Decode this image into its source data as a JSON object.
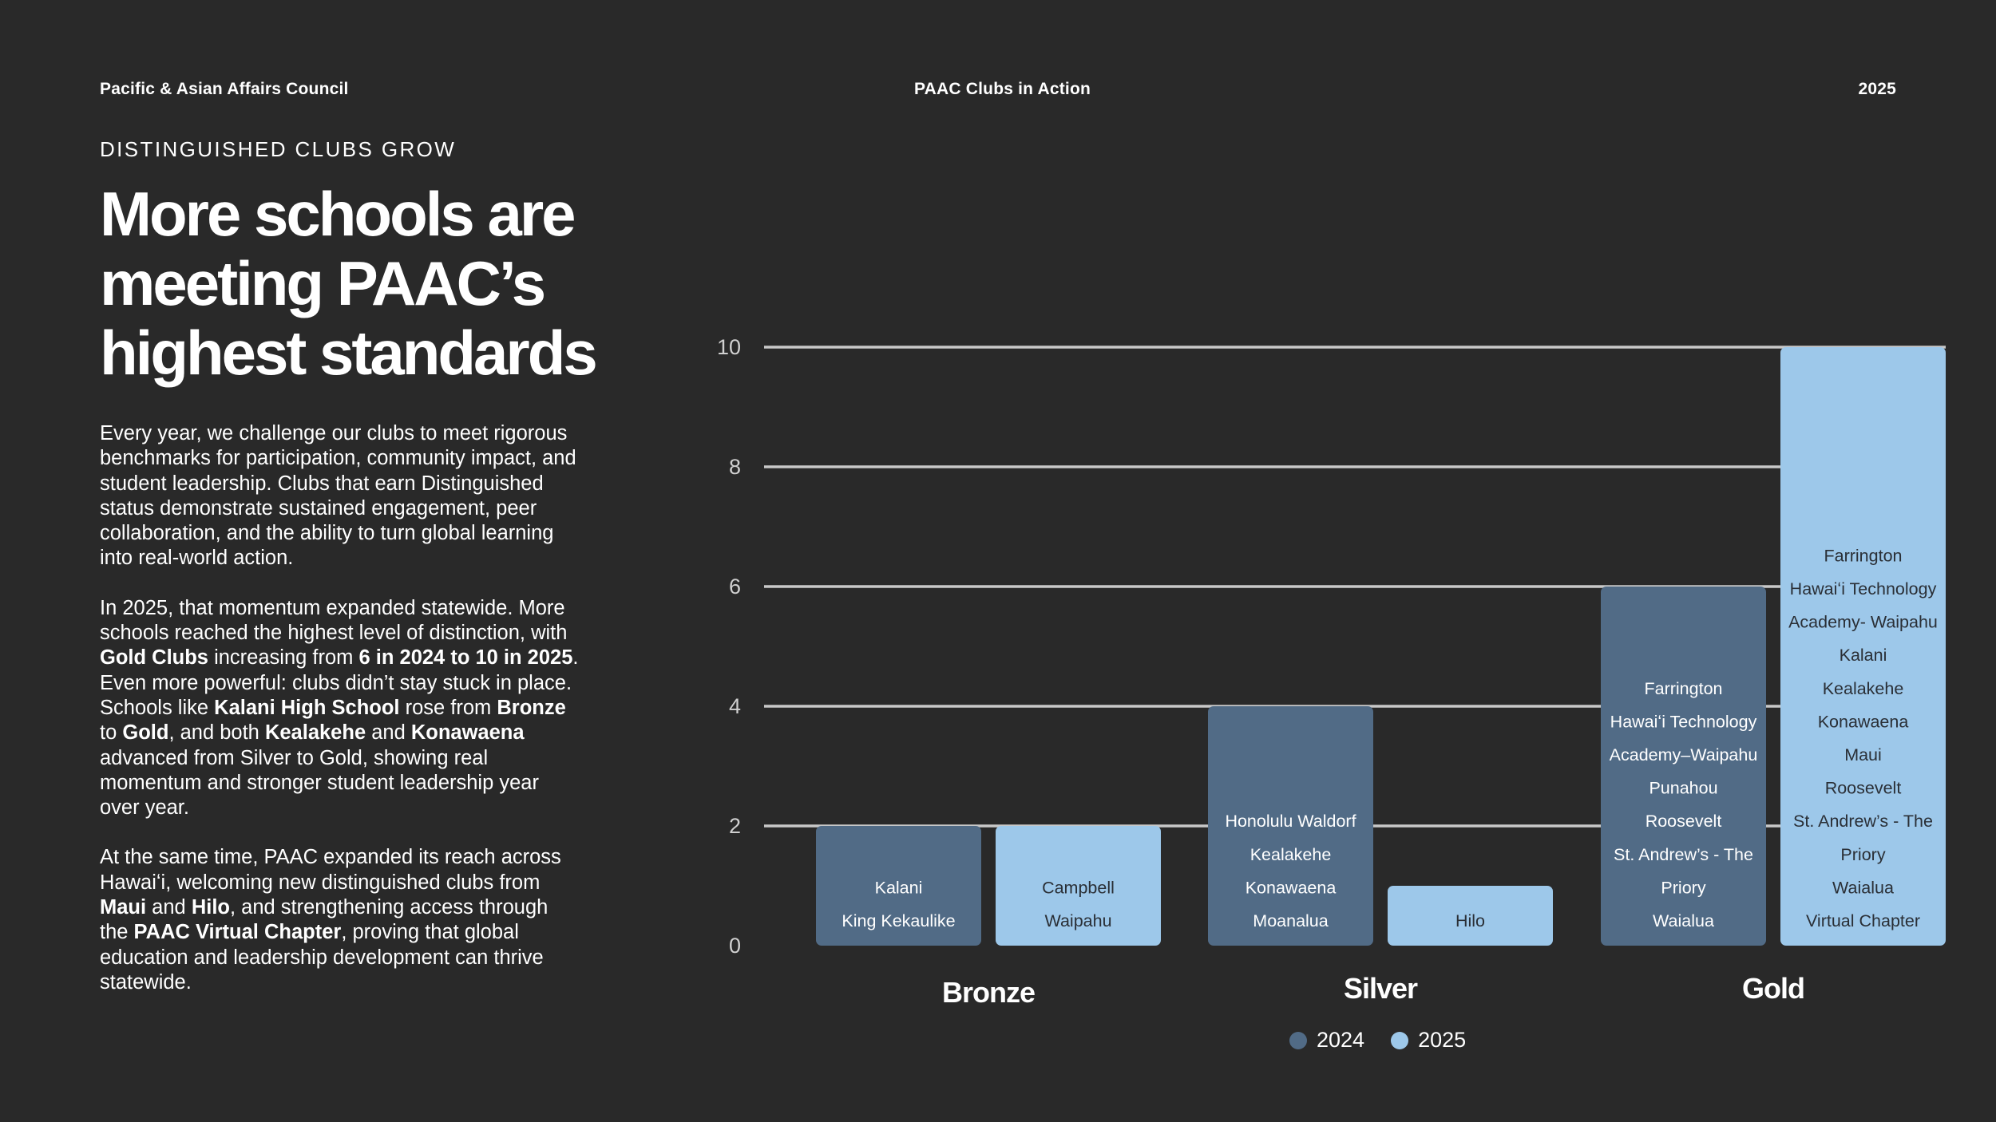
{
  "header": {
    "org": "Pacific & Asian Affairs Council",
    "center": "PAAC Clubs in Action",
    "year": "2025"
  },
  "eyebrow": "DISTINGUISHED CLUBS GROW",
  "title": "More schools are meeting PAAC’s highest standards",
  "body": {
    "p1": "Every year, we challenge our clubs to meet rigorous benchmarks for participation, community impact, and student leadership. Clubs that earn Distinguished status demonstrate sustained engagement, peer collaboration, and the ability to turn global learning into real-world action.",
    "p2": [
      {
        "t": "In 2025, that momentum expanded statewide. More schools reached the highest level of distinction, with "
      },
      {
        "t": "Gold Clubs",
        "b": true
      },
      {
        "t": " increasing from "
      },
      {
        "t": "6 in 2024 to 10 in 2025",
        "b": true
      },
      {
        "t": ". Even more powerful: clubs didn’t stay stuck in place. Schools like "
      },
      {
        "t": "Kalani High School",
        "b": true
      },
      {
        "t": " rose from "
      },
      {
        "t": "Bronze",
        "b": true
      },
      {
        "t": " to "
      },
      {
        "t": "Gold",
        "b": true
      },
      {
        "t": ", and both "
      },
      {
        "t": "Kealakehe",
        "b": true
      },
      {
        "t": " and "
      },
      {
        "t": "Konawaena",
        "b": true
      },
      {
        "t": " advanced from Silver to Gold, showing real momentum and stronger student leadership year over year."
      }
    ],
    "p3": [
      {
        "t": "At the same time, PAAC expanded its reach across Hawaiʻi, welcoming new distinguished clubs from "
      },
      {
        "t": "Maui",
        "b": true
      },
      {
        "t": " and "
      },
      {
        "t": "Hilo",
        "b": true
      },
      {
        "t": ", and strengthening access through the "
      },
      {
        "t": "PAAC Virtual Chapter",
        "b": true
      },
      {
        "t": ", proving that global education and leadership development can thrive statewide."
      }
    ]
  },
  "colors": {
    "background": "#292929",
    "series_2024": "#516b86",
    "series_2025": "#9dc8ea",
    "grid": "#c8c8c8",
    "tick": "#d0d0d0"
  },
  "chart_data": {
    "type": "bar",
    "categories": [
      "Bronze",
      "Silver",
      "Gold"
    ],
    "ylim": [
      0,
      10
    ],
    "yticks": [
      "0",
      "2",
      "4",
      "6",
      "8",
      "10"
    ],
    "series": [
      {
        "name": "2024",
        "values": [
          2,
          4,
          6
        ],
        "labels": [
          [
            "Kalani",
            "King Kekaulike"
          ],
          [
            "Honolulu Waldorf",
            "Kealakehe",
            "Konawaena",
            "Moanalua"
          ],
          [
            "Farrington",
            "Hawaiʻi Technology",
            "Academy–Waipahu",
            "Punahou",
            "Roosevelt",
            "St. Andrew’s - The",
            "Priory",
            "Waialua"
          ]
        ]
      },
      {
        "name": "2025",
        "values": [
          2,
          1,
          10
        ],
        "labels": [
          [
            "Campbell",
            "Waipahu"
          ],
          [
            "Hilo"
          ],
          [
            "Farrington",
            "Hawaiʻi Technology",
            "Academy- Waipahu",
            "Kalani",
            "Kealakehe",
            "Konawaena",
            "Maui",
            "Roosevelt",
            "St. Andrew’s  - The",
            "Priory",
            "Waialua",
            "Virtual Chapter"
          ]
        ]
      }
    ],
    "legend": [
      "2024",
      "2025"
    ],
    "title": "",
    "xlabel": "",
    "ylabel": ""
  }
}
